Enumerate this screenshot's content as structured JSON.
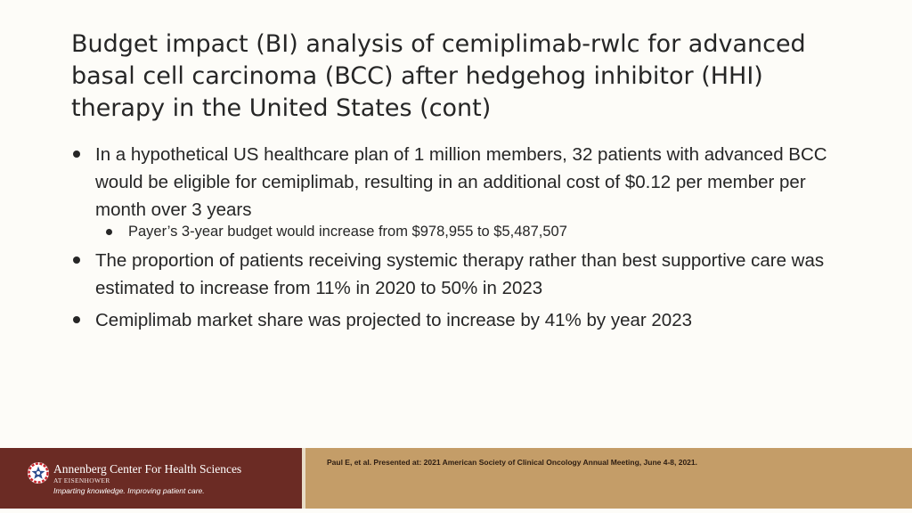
{
  "title": "Budget impact (BI) analysis of cemiplimab-rwlc for advanced basal cell carcinoma (BCC) after hedgehog inhibitor (HHI) therapy in the United States (cont)",
  "bullets": [
    {
      "text": "In a hypothetical US healthcare plan of 1 million members, 32 patients with advanced BCC would be eligible for cemiplimab, resulting in an additional cost of $0.12 per member per month over 3 years",
      "sub": [
        "Payer’s 3-year budget would increase from $978,955 to $5,487,507"
      ]
    },
    {
      "text": "The proportion of patients receiving systemic therapy rather than best supportive care was estimated to increase from 11% in 2020 to 50% in 2023"
    },
    {
      "text": "Cemiplimab market share was projected to increase by 41% by year 2023"
    }
  ],
  "footer": {
    "logo_name": "Annenberg Center For Health Sciences",
    "logo_sub": "AT EISENHOWER",
    "logo_tagline": "Imparting knowledge. Improving patient care.",
    "logo_icon": "star-emblem-icon",
    "citation": "Paul E, et al. Presented at: 2021 American Society of Clinical Oncology Annual Meeting, June 4-8, 2021."
  },
  "colors": {
    "background": "#fdfcf8",
    "footer_logo_bg": "#6b2b24",
    "footer_ref_bg": "#c49d68",
    "emblem_red": "#c8262d",
    "emblem_blue": "#2f4f8f"
  }
}
